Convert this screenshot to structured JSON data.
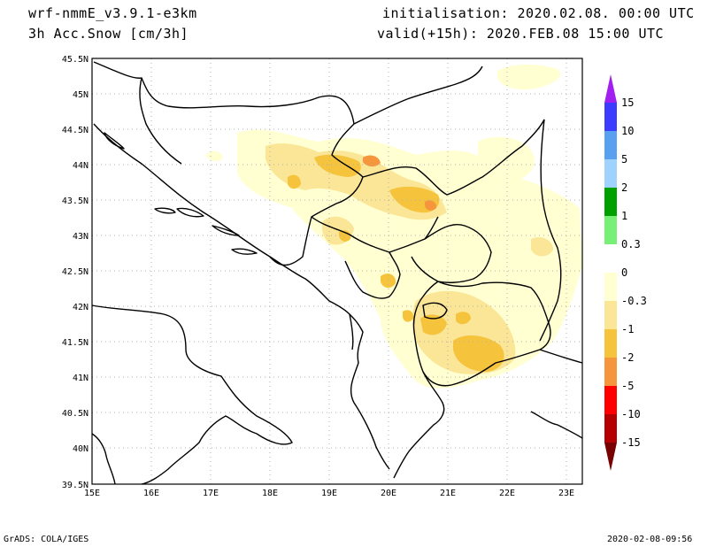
{
  "header": {
    "model": "wrf-nmmE_v3.9.1-e3km",
    "field": "3h Acc.Snow [cm/3h]",
    "init": "initialisation: 2020.02.08. 00:00 UTC",
    "valid": "valid(+15h): 2020.FEB.08 15:00 UTC"
  },
  "footer": {
    "left": "GrADS: COLA/IGES",
    "right": "2020-02-08-09:56"
  },
  "map": {
    "lon_range": [
      15,
      23.3
    ],
    "lat_range": [
      39.5,
      45.5
    ],
    "lon_ticks": [
      "15E",
      "16E",
      "17E",
      "18E",
      "19E",
      "20E",
      "21E",
      "22E",
      "23E"
    ],
    "lat_ticks": [
      "45.5N",
      "45N",
      "44.5N",
      "44N",
      "43.5N",
      "43N",
      "42.5N",
      "42N",
      "41.5N",
      "41N",
      "40.5N",
      "40N",
      "39.5N"
    ],
    "grid": "dotted"
  },
  "colorbar": {
    "labels": [
      "15",
      "10",
      "5",
      "2",
      "1",
      "0.3",
      "0",
      "-0.3",
      "-1",
      "-2",
      "-5",
      "-10",
      "-15"
    ],
    "colors": [
      "#a020f0",
      "#3c3cff",
      "#5aa0f0",
      "#a0d2ff",
      "#00a000",
      "#78f078",
      "#ffffff",
      "#ffffd2",
      "#fae696",
      "#f5c33c",
      "#f5963c",
      "#ff0000",
      "#b40000",
      "#780000"
    ]
  },
  "shading_colors": {
    "light": "#ffffd2",
    "pale": "#fae696",
    "mid": "#f5c33c",
    "orange": "#f5963c"
  }
}
